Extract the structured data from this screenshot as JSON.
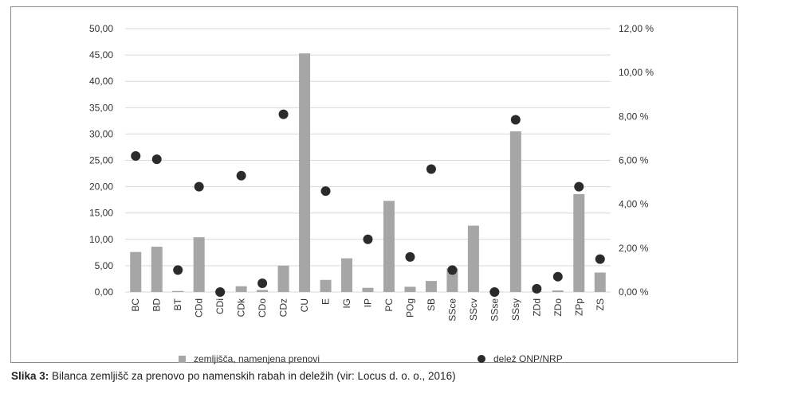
{
  "caption": {
    "label": "Slika 3:",
    "text": "Bilanca zemljišč za prenovo po namenskih rabah in deležih (vir: Locus d. o. o., 2016)"
  },
  "legend": {
    "bar_label": "zemljišča, namenjena prenovi",
    "dot_label": "delež ONP/NRP"
  },
  "chart_data": {
    "type": "bar",
    "categories": [
      "BC",
      "BD",
      "BT",
      "CDd",
      "CDi",
      "CDk",
      "CDo",
      "CDz",
      "CU",
      "E",
      "IG",
      "IP",
      "PC",
      "POg",
      "SB",
      "SSce",
      "SScv",
      "SSse",
      "SSsy",
      "ZDd",
      "ZDo",
      "ZPp",
      "ZS"
    ],
    "series": [
      {
        "name": "zemljišča, namenjena prenovi",
        "type": "bar",
        "axis": "left",
        "color": "#a6a6a6",
        "values": [
          7.6,
          8.6,
          0.2,
          10.4,
          0.1,
          1.1,
          0.4,
          5.0,
          45.3,
          2.3,
          6.4,
          0.8,
          17.3,
          1.0,
          2.1,
          4.5,
          12.6,
          0.1,
          30.5,
          0.1,
          0.3,
          18.6,
          3.7
        ]
      },
      {
        "name": "delež ONP/NRP",
        "type": "scatter",
        "axis": "right",
        "color": "#2b2b2b",
        "values": [
          6.2,
          6.05,
          1.0,
          4.8,
          0.0,
          5.3,
          0.4,
          8.1,
          null,
          4.6,
          null,
          2.4,
          null,
          1.6,
          5.6,
          1.0,
          null,
          0.0,
          7.85,
          0.15,
          0.7,
          4.8,
          1.5
        ]
      }
    ],
    "ylim_left": [
      0,
      50
    ],
    "yticks_left": [
      "0,00",
      "5,00",
      "10,00",
      "15,00",
      "20,00",
      "25,00",
      "30,00",
      "35,00",
      "40,00",
      "45,00",
      "50,00"
    ],
    "ylim_right": [
      0,
      12
    ],
    "yticks_right": [
      "0,00 %",
      "2,00 %",
      "4,00 %",
      "6,00 %",
      "8,00 %",
      "10,00 %",
      "12,00 %"
    ],
    "grid": "horizontal",
    "legend_position": "bottom"
  }
}
